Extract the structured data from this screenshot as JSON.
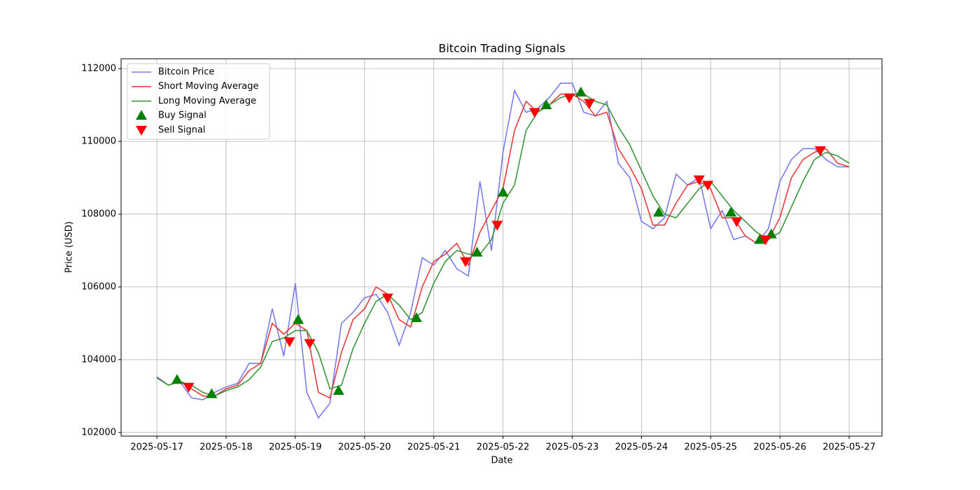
{
  "chart_data": {
    "type": "line",
    "title": "Bitcoin Trading Signals",
    "xlabel": "Date",
    "ylabel": "Price (USD)",
    "x": [
      "2025-05-17T00:00",
      "2025-05-17T04:00",
      "2025-05-17T08:00",
      "2025-05-17T12:00",
      "2025-05-17T16:00",
      "2025-05-17T20:00",
      "2025-05-18T00:00",
      "2025-05-18T04:00",
      "2025-05-18T08:00",
      "2025-05-18T12:00",
      "2025-05-18T16:00",
      "2025-05-18T20:00",
      "2025-05-19T00:00",
      "2025-05-19T04:00",
      "2025-05-19T08:00",
      "2025-05-19T12:00",
      "2025-05-19T16:00",
      "2025-05-19T20:00",
      "2025-05-20T00:00",
      "2025-05-20T04:00",
      "2025-05-20T08:00",
      "2025-05-20T12:00",
      "2025-05-20T16:00",
      "2025-05-20T20:00",
      "2025-05-21T00:00",
      "2025-05-21T04:00",
      "2025-05-21T08:00",
      "2025-05-21T12:00",
      "2025-05-21T16:00",
      "2025-05-21T20:00",
      "2025-05-22T00:00",
      "2025-05-22T04:00",
      "2025-05-22T08:00",
      "2025-05-22T12:00",
      "2025-05-22T16:00",
      "2025-05-22T20:00",
      "2025-05-23T00:00",
      "2025-05-23T04:00",
      "2025-05-23T08:00",
      "2025-05-23T12:00",
      "2025-05-23T16:00",
      "2025-05-23T20:00",
      "2025-05-24T00:00",
      "2025-05-24T04:00",
      "2025-05-24T08:00",
      "2025-05-24T12:00",
      "2025-05-24T16:00",
      "2025-05-24T20:00",
      "2025-05-25T00:00",
      "2025-05-25T04:00",
      "2025-05-25T08:00",
      "2025-05-25T12:00",
      "2025-05-25T16:00",
      "2025-05-25T20:00",
      "2025-05-26T00:00",
      "2025-05-26T04:00",
      "2025-05-26T08:00",
      "2025-05-26T12:00",
      "2025-05-26T16:00",
      "2025-05-26T20:00",
      "2025-05-27T00:00"
    ],
    "series": [
      {
        "name": "Bitcoin Price",
        "color": "#7a7aec",
        "values": [
          103530,
          103300,
          103400,
          102950,
          102900,
          103100,
          103250,
          103350,
          103900,
          103900,
          105400,
          104100,
          106100,
          103100,
          102400,
          102800,
          105000,
          105300,
          105700,
          105800,
          105300,
          104400,
          105300,
          106800,
          106600,
          107000,
          106500,
          106300,
          108900,
          107000,
          109700,
          111400,
          110800,
          110900,
          111200,
          111600,
          111600,
          110800,
          110700,
          111100,
          109400,
          109000,
          107800,
          107600,
          107900,
          109100,
          108800,
          109000,
          107600,
          108100,
          107300,
          107400,
          107200,
          107600,
          108900,
          109500,
          109800,
          109800,
          109500,
          109300,
          109300
        ]
      },
      {
        "name": "Short Moving Average",
        "color": "#e83c3c",
        "values": [
          103500,
          103300,
          103400,
          103200,
          103000,
          103000,
          103200,
          103300,
          103700,
          103900,
          105000,
          104700,
          105000,
          104800,
          103100,
          102950,
          104200,
          105100,
          105400,
          106000,
          105800,
          105100,
          104900,
          106000,
          106700,
          106900,
          107200,
          106600,
          107500,
          108100,
          108700,
          110300,
          111100,
          110800,
          111000,
          111300,
          111300,
          111100,
          110700,
          110800,
          109800,
          109300,
          108700,
          107700,
          107700,
          108300,
          108800,
          108900,
          108700,
          107900,
          107900,
          107400,
          107200,
          107300,
          107900,
          109000,
          109500,
          109700,
          109800,
          109400,
          109300
        ]
      },
      {
        "name": "Long Moving Average",
        "color": "#3a963a",
        "values": [
          103500,
          103300,
          103400,
          103300,
          103100,
          103000,
          103150,
          103250,
          103450,
          103800,
          104500,
          104600,
          104800,
          104800,
          104200,
          103200,
          103300,
          104300,
          105000,
          105600,
          105800,
          105500,
          105100,
          105300,
          106100,
          106700,
          107000,
          106900,
          106900,
          107300,
          108300,
          108800,
          110300,
          110800,
          111000,
          111200,
          111300,
          111300,
          111100,
          111000,
          110400,
          109900,
          109200,
          108500,
          108000,
          107900,
          108300,
          108700,
          108900,
          108500,
          108100,
          107800,
          107500,
          107300,
          107500,
          108200,
          108900,
          109500,
          109700,
          109600,
          109400
        ]
      },
      {
        "name": "Buy Signal",
        "type": "scatter",
        "marker": "^",
        "color": "green",
        "x": [
          "2025-05-17T07:00",
          "2025-05-17T19:00",
          "2025-05-19T01:00",
          "2025-05-19T15:00",
          "2025-05-20T18:00",
          "2025-05-21T15:00",
          "2025-05-22T00:00",
          "2025-05-22T15:00",
          "2025-05-23T03:00",
          "2025-05-24T06:00",
          "2025-05-25T07:00",
          "2025-05-25T17:00",
          "2025-05-25T21:00"
        ],
        "values": [
          103450,
          103060,
          105100,
          103150,
          105150,
          106950,
          108600,
          111000,
          111350,
          108050,
          108050,
          107300,
          107450
        ]
      },
      {
        "name": "Sell Signal",
        "type": "scatter",
        "marker": "v",
        "color": "red",
        "x": [
          "2025-05-17T11:00",
          "2025-05-18T22:00",
          "2025-05-19T05:00",
          "2025-05-20T08:00",
          "2025-05-21T11:00",
          "2025-05-21T22:00",
          "2025-05-22T11:00",
          "2025-05-22T23:00",
          "2025-05-23T06:00",
          "2025-05-24T20:00",
          "2025-05-24T23:00",
          "2025-05-25T09:00",
          "2025-05-25T19:00",
          "2025-05-26T14:00"
        ],
        "values": [
          103250,
          104500,
          104450,
          105700,
          106700,
          107700,
          110800,
          111200,
          111050,
          108950,
          108800,
          107800,
          107300,
          109750
        ]
      }
    ],
    "xlim": [
      "2025-05-16T11:36",
      "2025-05-27T11:24"
    ],
    "xticks": [
      "2025-05-17",
      "2025-05-18",
      "2025-05-19",
      "2025-05-20",
      "2025-05-21",
      "2025-05-22",
      "2025-05-23",
      "2025-05-24",
      "2025-05-25",
      "2025-05-26",
      "2025-05-27"
    ],
    "ylim": [
      101900,
      112270
    ],
    "yticks": [
      102000,
      104000,
      106000,
      108000,
      110000,
      112000
    ],
    "grid": true,
    "legend": "upper left"
  }
}
